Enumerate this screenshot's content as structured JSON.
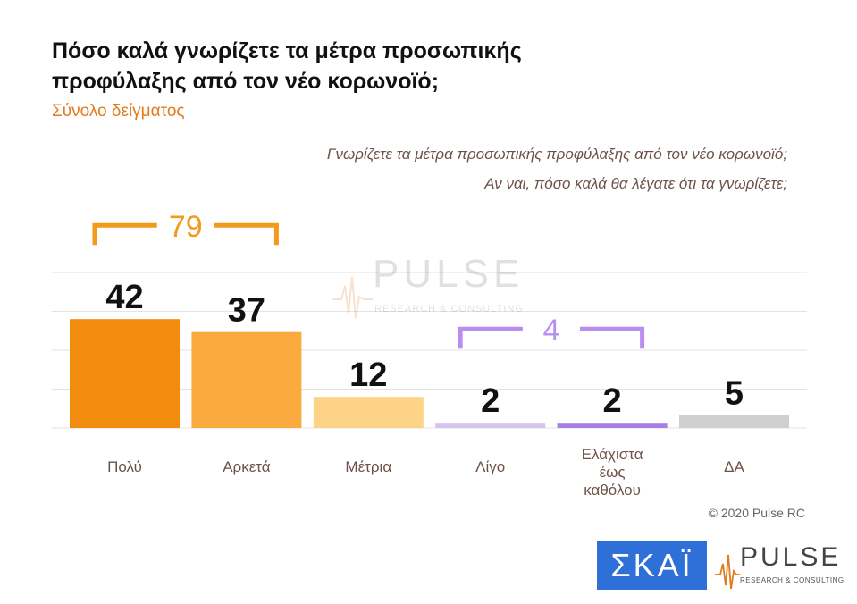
{
  "title": "Πόσο καλά γνωρίζετε τα μέτρα προσωπικής προφύλαξης από τον νέο κορωνοϊό;",
  "subtitle": "Σύνολο δείγματος",
  "question_line1": "Γνωρίζετε τα μέτρα προσωπικής προφύλαξης από τον νέο κορωνοϊό;",
  "question_line2": "Αν ναι, πόσο καλά θα λέγατε ότι τα γνωρίζετε;",
  "copyright": "© 2020 Pulse RC",
  "logos": {
    "skai": "ΣΚΑΪ",
    "pulse": "PULSE",
    "pulse_tagline": "RESEARCH & CONSULTING"
  },
  "watermark": {
    "word": "PULSE",
    "tagline": "RESEARCH & CONSULTING"
  },
  "chart_data": {
    "type": "bar",
    "categories": [
      "Πολύ",
      "Αρκετά",
      "Μέτρια",
      "Λίγο",
      "Ελάχιστα έως καθόλου",
      "ΔΑ"
    ],
    "category_lines": [
      [
        "Πολύ"
      ],
      [
        "Αρκετά"
      ],
      [
        "Μέτρια"
      ],
      [
        "Λίγο"
      ],
      [
        "Ελάχιστα",
        "έως",
        "καθόλου"
      ],
      [
        "ΔΑ"
      ]
    ],
    "values": [
      42,
      37,
      12,
      2,
      2,
      5
    ],
    "colors": [
      "#f28c0f",
      "#f9ab3e",
      "#fdd487",
      "#d4c4ee",
      "#a77ee6",
      "#d0d0d0"
    ],
    "ylim": [
      0,
      70
    ],
    "grid": true,
    "groups": [
      {
        "label": "79",
        "from": 0,
        "to": 1,
        "color": "#f39a1d"
      },
      {
        "label": "4",
        "from": 3,
        "to": 4,
        "color": "#b98ef0"
      }
    ]
  }
}
